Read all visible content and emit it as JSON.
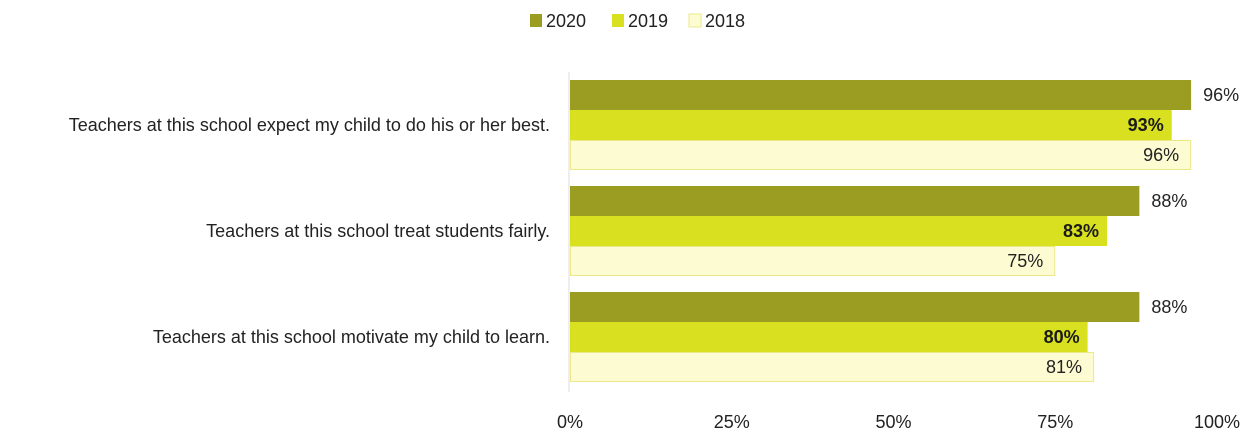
{
  "chart_data": {
    "type": "bar",
    "orientation": "horizontal",
    "title": "",
    "xlabel": "",
    "ylabel": "",
    "categories": [
      "Teachers at this school expect my child to do his or her best.",
      "Teachers at this school treat students fairly.",
      "Teachers at this school motivate my child to learn."
    ],
    "series": [
      {
        "name": "2020",
        "color": "#9a9d22",
        "values": [
          96,
          88,
          88
        ],
        "labels": [
          "96%",
          "88%",
          "88%"
        ]
      },
      {
        "name": "2019",
        "color": "#d8e01f",
        "values": [
          93,
          83,
          80
        ],
        "labels": [
          "93%",
          "83%",
          "80%"
        ]
      },
      {
        "name": "2018",
        "color": "#fdfbd2",
        "border_color": "#ece88a",
        "values": [
          96,
          75,
          81
        ],
        "labels": [
          "96%",
          "75%",
          "81%"
        ]
      }
    ],
    "xlim": [
      0,
      100
    ],
    "xticks": [
      0,
      25,
      50,
      75,
      100
    ],
    "xtick_labels": [
      "0%",
      "25%",
      "50%",
      "75%",
      "100%"
    ],
    "grid": false,
    "legend_position": "top-center"
  }
}
